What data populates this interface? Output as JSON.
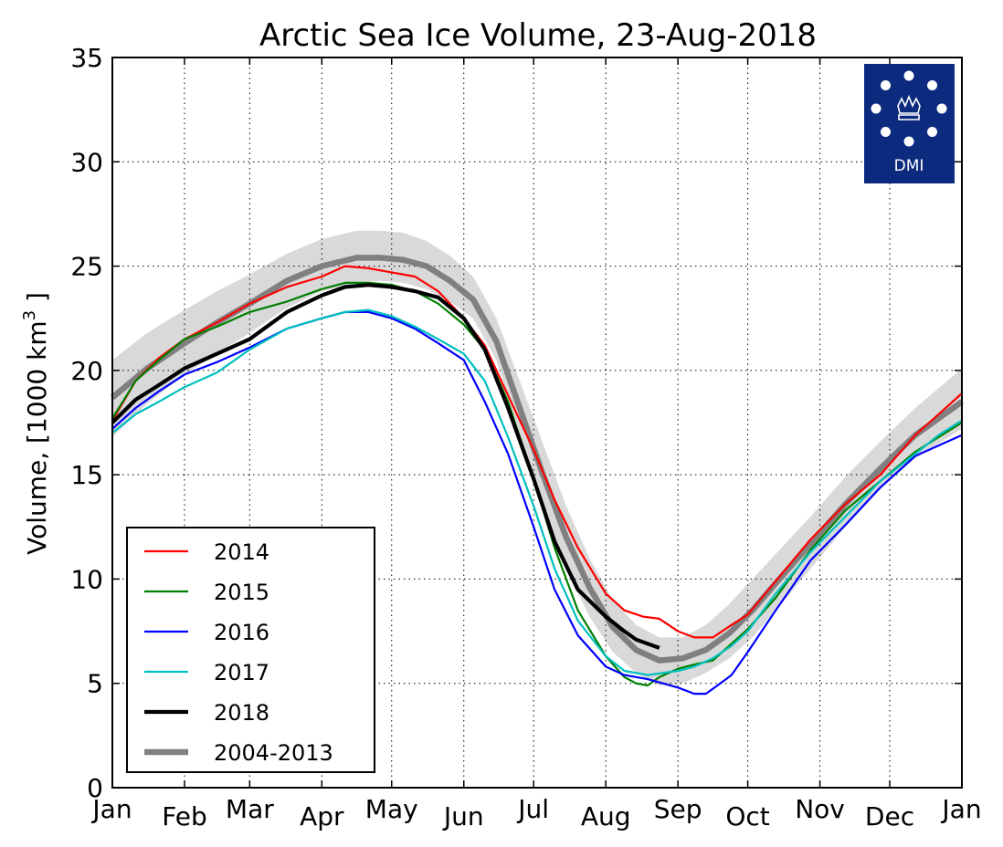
{
  "chart_data": {
    "type": "line",
    "title": "Arctic Sea Ice Volume, 23-Aug-2018",
    "ylabel_main": "Volume, [1000 km",
    "ylabel_sup": "3",
    "ylabel_end": " ]",
    "xlabel": "",
    "ylim": [
      0,
      35
    ],
    "xlim": [
      0,
      365
    ],
    "yticks": [
      0,
      5,
      10,
      15,
      20,
      25,
      30,
      35
    ],
    "month_ticks": [
      {
        "label": "Jan",
        "day": 0
      },
      {
        "label": "Feb",
        "day": 31
      },
      {
        "label": "Mar",
        "day": 59
      },
      {
        "label": "Apr",
        "day": 90
      },
      {
        "label": "May",
        "day": 120
      },
      {
        "label": "Jun",
        "day": 151
      },
      {
        "label": "Jul",
        "day": 181
      },
      {
        "label": "Aug",
        "day": 212
      },
      {
        "label": "Sep",
        "day": 243
      },
      {
        "label": "Oct",
        "day": 273
      },
      {
        "label": "Nov",
        "day": 304
      },
      {
        "label": "Dec",
        "day": 334
      },
      {
        "label": "Jan",
        "day": 365
      }
    ],
    "grid": true,
    "legend_position": "bottom-left",
    "logo_text": "DMI",
    "band_2004_2013": {
      "x": [
        0,
        15,
        31,
        45,
        59,
        75,
        90,
        105,
        115,
        125,
        135,
        145,
        155,
        165,
        175,
        185,
        195,
        205,
        215,
        225,
        235,
        245,
        255,
        265,
        275,
        285,
        300,
        315,
        330,
        345,
        365
      ],
      "upper": [
        20.5,
        21.8,
        22.9,
        23.8,
        24.6,
        25.6,
        26.3,
        26.7,
        26.7,
        26.6,
        26.2,
        25.5,
        24.5,
        22.5,
        19.5,
        16.5,
        13.5,
        11.0,
        9.0,
        7.8,
        7.2,
        7.2,
        7.8,
        8.8,
        10.0,
        11.2,
        13.0,
        14.9,
        16.6,
        18.2,
        20.1
      ],
      "lower": [
        16.8,
        18.4,
        19.8,
        20.8,
        21.8,
        23.0,
        23.8,
        24.2,
        24.3,
        24.2,
        23.9,
        23.3,
        22.5,
        20.5,
        17.0,
        13.5,
        10.5,
        8.2,
        6.5,
        5.5,
        4.9,
        5.0,
        5.5,
        6.2,
        7.2,
        8.5,
        10.5,
        12.5,
        14.3,
        15.8,
        17.2
      ]
    },
    "series": [
      {
        "name": "2014",
        "color": "#ff0000",
        "width": 2.2,
        "x": [
          0,
          10,
          20,
          31,
          45,
          59,
          75,
          90,
          100,
          110,
          120,
          130,
          140,
          151,
          160,
          170,
          181,
          190,
          200,
          212,
          220,
          228,
          235,
          243,
          250,
          258,
          266,
          273,
          285,
          300,
          315,
          330,
          345,
          355,
          365
        ],
        "y": [
          17.6,
          19.5,
          20.6,
          21.5,
          22.3,
          23.2,
          24.0,
          24.5,
          25.0,
          24.9,
          24.7,
          24.5,
          23.8,
          22.5,
          21.2,
          18.8,
          16.2,
          13.8,
          11.5,
          9.3,
          8.5,
          8.2,
          8.1,
          7.5,
          7.2,
          7.2,
          7.8,
          8.3,
          9.9,
          11.9,
          13.6,
          15.0,
          16.9,
          17.9,
          18.9
        ]
      },
      {
        "name": "2015",
        "color": "#008000",
        "width": 2.2,
        "x": [
          0,
          10,
          20,
          31,
          45,
          59,
          75,
          90,
          100,
          110,
          120,
          130,
          140,
          151,
          160,
          170,
          181,
          190,
          200,
          212,
          220,
          225,
          230,
          235,
          243,
          250,
          258,
          266,
          273,
          285,
          300,
          315,
          330,
          345,
          355,
          365
        ],
        "y": [
          17.7,
          19.5,
          20.5,
          21.5,
          22.1,
          22.8,
          23.3,
          23.9,
          24.2,
          24.2,
          24.1,
          23.8,
          23.2,
          22.2,
          21.0,
          18.5,
          14.8,
          11.5,
          8.5,
          6.3,
          5.3,
          5.0,
          4.9,
          5.3,
          5.7,
          5.9,
          6.1,
          6.9,
          7.6,
          9.1,
          11.4,
          13.3,
          14.7,
          16.1,
          16.8,
          17.5
        ]
      },
      {
        "name": "2016",
        "color": "#0000ff",
        "width": 2.2,
        "x": [
          0,
          10,
          20,
          31,
          45,
          59,
          75,
          90,
          100,
          110,
          120,
          130,
          140,
          151,
          160,
          170,
          181,
          190,
          200,
          212,
          220,
          230,
          243,
          250,
          255,
          260,
          266,
          273,
          285,
          300,
          315,
          330,
          345,
          355,
          365
        ],
        "y": [
          17.2,
          18.2,
          19.0,
          19.8,
          20.4,
          21.1,
          22.0,
          22.5,
          22.8,
          22.8,
          22.5,
          22.0,
          21.3,
          20.5,
          18.5,
          16.0,
          12.5,
          9.5,
          7.3,
          5.8,
          5.4,
          5.2,
          4.8,
          4.5,
          4.5,
          4.9,
          5.4,
          6.5,
          8.5,
          10.9,
          12.6,
          14.4,
          15.9,
          16.4,
          16.9
        ]
      },
      {
        "name": "2017",
        "color": "#00bfbf",
        "width": 2.2,
        "x": [
          0,
          10,
          20,
          31,
          45,
          59,
          75,
          90,
          100,
          110,
          120,
          130,
          140,
          151,
          160,
          170,
          181,
          190,
          200,
          212,
          220,
          230,
          243,
          250,
          258,
          266,
          273,
          285,
          300,
          315,
          330,
          345,
          355,
          365
        ],
        "y": [
          17.0,
          17.9,
          18.5,
          19.2,
          19.9,
          21.0,
          22.0,
          22.5,
          22.8,
          22.9,
          22.6,
          22.1,
          21.5,
          20.8,
          19.5,
          16.8,
          13.5,
          10.5,
          8.0,
          6.3,
          5.6,
          5.4,
          5.6,
          5.8,
          6.2,
          6.8,
          7.5,
          9.3,
          11.3,
          13.0,
          14.7,
          16.0,
          16.9,
          17.6
        ]
      },
      {
        "name": "2018",
        "color": "#000000",
        "width": 4.2,
        "x": [
          0,
          10,
          20,
          31,
          45,
          59,
          75,
          90,
          100,
          110,
          120,
          130,
          140,
          151,
          160,
          170,
          181,
          190,
          200,
          212,
          220,
          225,
          230,
          235
        ],
        "y": [
          17.5,
          18.6,
          19.3,
          20.1,
          20.8,
          21.5,
          22.8,
          23.6,
          24.0,
          24.1,
          24.0,
          23.8,
          23.5,
          22.5,
          21.0,
          18.2,
          14.8,
          11.8,
          9.5,
          8.2,
          7.5,
          7.1,
          6.9,
          6.7
        ]
      },
      {
        "name": "2004-2013",
        "color": "#808080",
        "width": 6.5,
        "x": [
          0,
          15,
          31,
          45,
          59,
          75,
          90,
          105,
          115,
          125,
          135,
          145,
          155,
          165,
          175,
          185,
          195,
          205,
          215,
          225,
          235,
          245,
          255,
          265,
          275,
          285,
          300,
          315,
          330,
          345,
          365
        ],
        "y": [
          18.7,
          20.1,
          21.3,
          22.3,
          23.2,
          24.3,
          25.0,
          25.4,
          25.4,
          25.3,
          25.0,
          24.3,
          23.4,
          21.4,
          18.2,
          15.0,
          12.0,
          9.6,
          7.7,
          6.6,
          6.1,
          6.2,
          6.6,
          7.4,
          8.5,
          9.8,
          11.7,
          13.6,
          15.3,
          16.9,
          18.5
        ]
      }
    ]
  }
}
